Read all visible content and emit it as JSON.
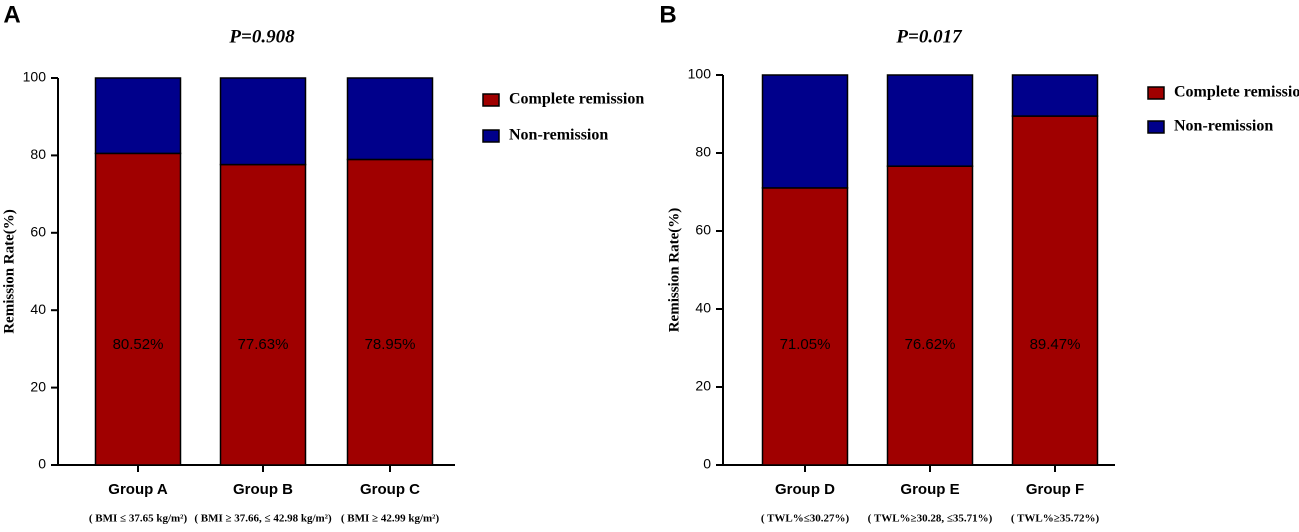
{
  "chart_data": [
    {
      "type": "bar",
      "stacked": true,
      "panel_label": "A",
      "title": "P=0.908",
      "ylabel": "Remission Rate(%)",
      "categories": [
        "Group A",
        "Group B",
        "Group C"
      ],
      "category_sublabels": [
        "( BMI ≤ 37.65 kg/m²)",
        "( BMI ≥ 37.66, ≤ 42.98 kg/m²)",
        "( BMI ≥ 42.99 kg/m²)"
      ],
      "series": [
        {
          "name": "Complete remission",
          "color": "#a00000",
          "values": [
            80.52,
            77.63,
            78.95
          ],
          "value_labels": [
            "80.52%",
            "77.63%",
            "78.95%"
          ]
        },
        {
          "name": "Non-remission",
          "color": "#00008b",
          "values": [
            19.48,
            22.37,
            21.05
          ]
        }
      ],
      "ylim": [
        0,
        100
      ],
      "yticks": [
        0,
        20,
        40,
        60,
        80,
        100
      ],
      "legend": "right"
    },
    {
      "type": "bar",
      "stacked": true,
      "panel_label": "B",
      "title": "P=0.017",
      "ylabel": "Remission Rate(%)",
      "categories": [
        "Group D",
        "Group E",
        "Group F"
      ],
      "category_sublabels": [
        "( TWL%≤30.27%)",
        "( TWL%≥30.28, ≤35.71%)",
        "( TWL%≥35.72%)"
      ],
      "series": [
        {
          "name": "Complete remission",
          "color": "#a00000",
          "values": [
            71.05,
            76.62,
            89.47
          ],
          "value_labels": [
            "71.05%",
            "76.62%",
            "89.47%"
          ]
        },
        {
          "name": "Non-remission",
          "color": "#00008b",
          "values": [
            28.95,
            23.38,
            10.53
          ]
        }
      ],
      "ylim": [
        0,
        100
      ],
      "yticks": [
        0,
        20,
        40,
        60,
        80,
        100
      ],
      "legend": "right"
    }
  ]
}
